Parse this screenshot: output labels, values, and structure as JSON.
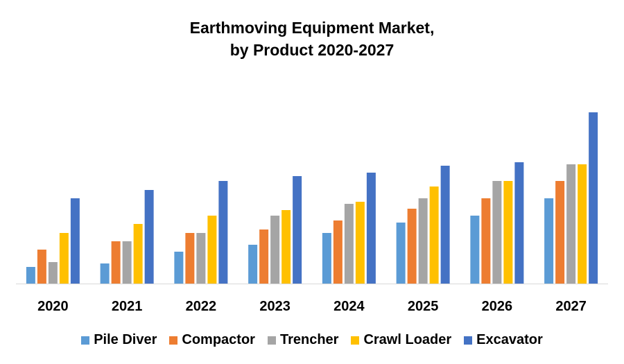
{
  "chart_data": {
    "type": "bar",
    "title_line1": "Earthmoving Equipment Market,",
    "title_line2": "by Product 2020-2027",
    "categories": [
      "2020",
      "2021",
      "2022",
      "2023",
      "2024",
      "2025",
      "2026",
      "2027"
    ],
    "series": [
      {
        "name": "Pile Diver",
        "color": "#5B9BD5",
        "values": [
          24,
          29,
          46,
          56,
          73,
          88,
          98,
          123
        ]
      },
      {
        "name": "Compactor",
        "color": "#ED7D31",
        "values": [
          49,
          61,
          73,
          78,
          91,
          108,
          123,
          148
        ]
      },
      {
        "name": "Trencher",
        "color": "#A5A5A5",
        "values": [
          31,
          61,
          73,
          98,
          115,
          123,
          148,
          172
        ]
      },
      {
        "name": "Crawl Loader",
        "color": "#FFC000",
        "values": [
          73,
          86,
          98,
          106,
          118,
          140,
          148,
          172
        ]
      },
      {
        "name": "Excavator",
        "color": "#4472C4",
        "values": [
          123,
          135,
          148,
          155,
          160,
          170,
          175,
          247
        ]
      }
    ],
    "xlabel": "",
    "ylabel": "",
    "ylim": [
      0,
      250
    ],
    "grid": false,
    "legend": "bottom"
  }
}
